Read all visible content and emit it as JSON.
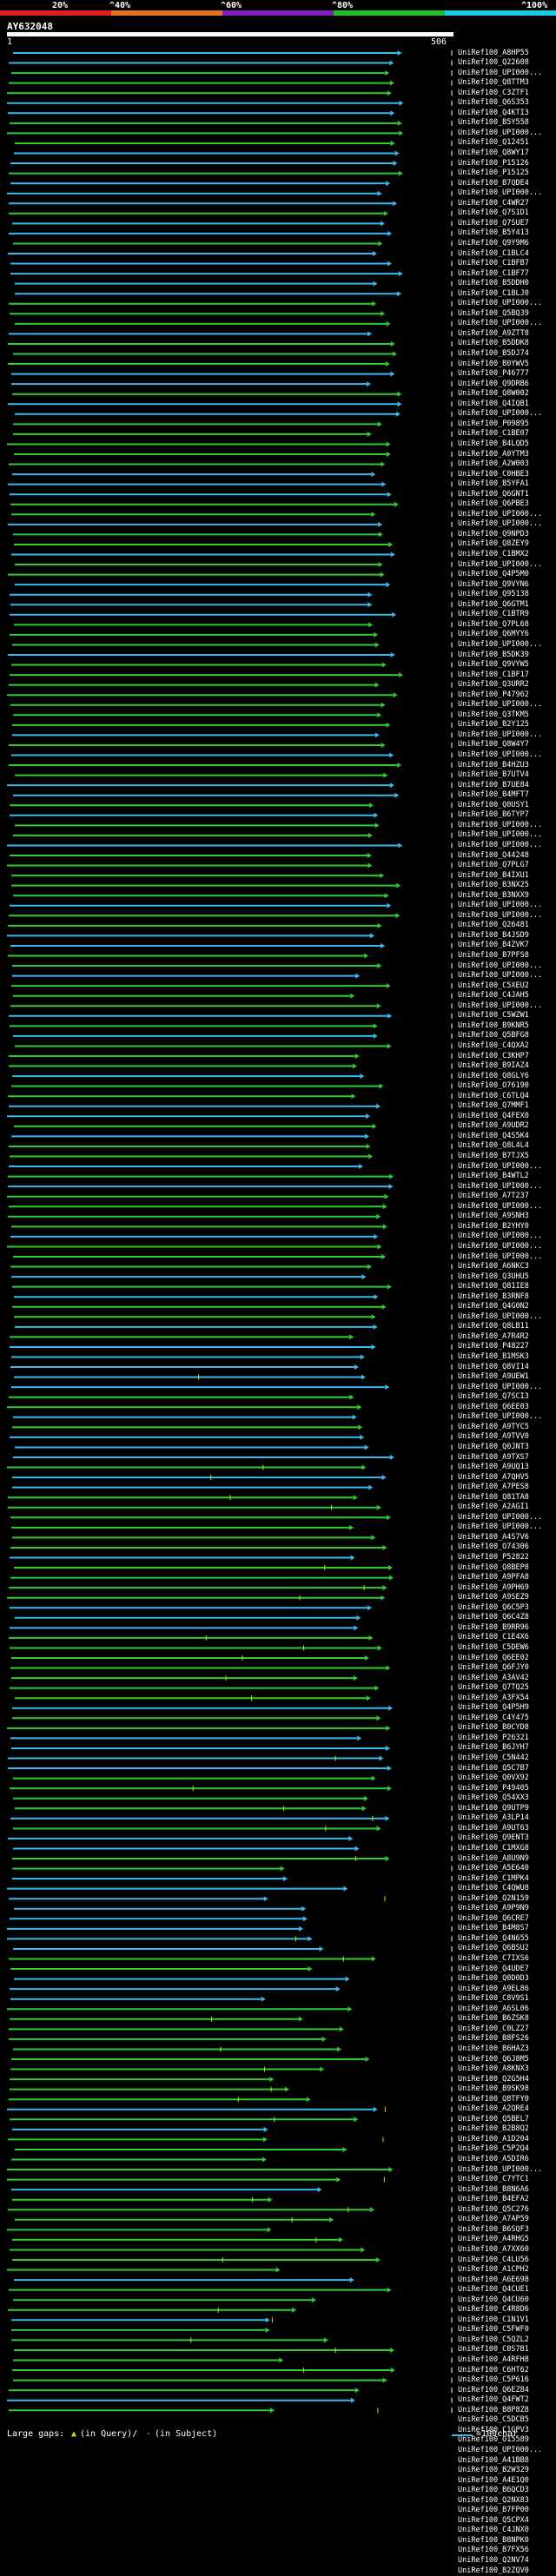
{
  "scale": {
    "ticks": [
      "20%",
      "^40%",
      "^60%",
      "^80%",
      "^100%"
    ],
    "colors": [
      "#e02020",
      "#e87020",
      "#8020c0",
      "#20c020",
      "#20c8e8"
    ]
  },
  "query": {
    "id": "AY632048",
    "start": "1",
    "end": "506"
  },
  "colors": {
    "green": "#2ecc2e",
    "blue": "#3ab8f0",
    "query": "#ffffff",
    "gap": "#d8d800"
  },
  "legend": {
    "prefix": "Large gaps:",
    "marker1": "▲",
    "text1": "(in Query)/",
    "marker2": "-",
    "text2": "(in Subject)",
    "unit": "=100char"
  },
  "hits": [
    "UniRef100_A8HP55",
    "UniRef100_Q22608",
    "UniRef100_UPI000...",
    "UniRef100_Q8TTM3",
    "UniRef100_C3ZTF1",
    "UniRef100_Q6S353",
    "UniRef100_Q4KTI3",
    "UniRef100_B5Y558",
    "UniRef100_UPI000...",
    "UniRef100_Q12451",
    "UniRef100_Q8WY17",
    "UniRef100_P15126",
    "UniRef100_P15125",
    "UniRef100_B7QDE4",
    "UniRef100_UPI000...",
    "UniRef100_C4WR27",
    "UniRef100_Q7S1D1",
    "UniRef100_Q7SUE7",
    "UniRef100_B5Y413",
    "UniRef100_Q9Y9M6",
    "UniRef100_C1BLC4",
    "UniRef100_C1BFB7",
    "UniRef100_C1BF77",
    "UniRef100_B5DDH0",
    "UniRef100_C1BLJ0",
    "UniRef100_UPI000...",
    "UniRef100_Q5BQ39",
    "UniRef100_UPI000...",
    "UniRef100_A9ZTT8",
    "UniRef100_B5DDK8",
    "UniRef100_B5DJ74",
    "UniRef100_B0YWV5",
    "UniRef100_P46777",
    "UniRef100_Q9DRB6",
    "UniRef100_Q8W002",
    "UniRef100_Q4IQB1",
    "UniRef100_UPI000...",
    "UniRef100_P09895",
    "UniRef100_C1BE07",
    "UniRef100_B4LQD5",
    "UniRef100_A0YTM3",
    "UniRef100_A2W003",
    "UniRef100_C0HBE3",
    "UniRef100_B5YFA1",
    "UniRef100_Q6GNT1",
    "UniRef100_Q6PBE3",
    "UniRef100_UPI000...",
    "UniRef100_UPI000...",
    "UniRef100_Q9NPD3",
    "UniRef100_Q8ZEY9",
    "UniRef100_C1BMX2",
    "UniRef100_UPI000...",
    "UniRef100_Q4P5M0",
    "UniRef100_Q9VYN6",
    "UniRef100_Q95138",
    "UniRef100_Q6GTM1",
    "UniRef100_C1BTR9",
    "UniRef100_Q7PL68",
    "UniRef100_Q6MYY6",
    "UniRef100_UPI000...",
    "UniRef100_B5DK39",
    "UniRef100_Q9VYW5",
    "UniRef100_C1BF17",
    "UniRef100_Q3URR2",
    "UniRef100_P47962",
    "UniRef100_UPI000...",
    "UniRef100_Q3TKM5",
    "UniRef100_B2Y125",
    "UniRef100_UPI000...",
    "UniRef100_Q8W4Y7",
    "UniRef100_UPI000...",
    "UniRef100_B4HZU3",
    "UniRef100_B7UTV4",
    "UniRef100_B7UE84",
    "UniRef100_B4MFT7",
    "UniRef100_Q0USY1",
    "UniRef100_B6TYP7",
    "UniRef100_UPI000...",
    "UniRef100_UPI000...",
    "UniRef100_UPI000...",
    "UniRef100_Q44248",
    "UniRef100_Q7PLG7",
    "UniRef100_B4IXU1",
    "UniRef100_B3NX25",
    "UniRef100_B3NXX9",
    "UniRef100_UPI000...",
    "UniRef100_UPI000...",
    "UniRef100_Q26481",
    "UniRef100_B4JSD9",
    "UniRef100_B4ZVK7",
    "UniRef100_B7PFS8",
    "UniRef100_UPI000...",
    "UniRef100_UPI000...",
    "UniRef100_C5XEU2",
    "UniRef100_C4JAH5",
    "UniRef100_UPI000...",
    "UniRef100_C5WZW1",
    "UniRef100_B9KNR5",
    "UniRef100_Q5BFG8",
    "UniRef100_C4QXA2",
    "UniRef100_C3KHP7",
    "UniRef100_B9IAZ4",
    "UniRef100_Q8GLY6",
    "UniRef100_O76190",
    "UniRef100_C6TLQ4",
    "UniRef100_Q7MMF1",
    "UniRef100_Q4FEX0",
    "UniRef100_A9UDR2",
    "UniRef100_Q4S5K4",
    "UniRef100_Q8L4L4",
    "UniRef100_B7TJX5",
    "UniRef100_UPI000...",
    "UniRef100_B4WTL2",
    "UniRef100_UPI000...",
    "UniRef100_A7T237",
    "UniRef100_UPI000...",
    "UniRef100_A9SNH3",
    "UniRef100_B2YHY0",
    "UniRef100_UPI000...",
    "UniRef100_UPI000...",
    "UniRef100_UPI000...",
    "UniRef100_A6NKC3",
    "UniRef100_Q3UHU5",
    "UniRef100_Q81IE8",
    "UniRef100_B3RNF8",
    "UniRef100_Q4G0N2",
    "UniRef100_UPI000...",
    "UniRef100_Q8LB11",
    "UniRef100_A7R4R2",
    "UniRef100_P48227",
    "UniRef100_B1MSK3",
    "UniRef100_Q8VI14",
    "UniRef100_A9UEW1",
    "UniRef100_UPI000...",
    "UniRef100_Q7SCI3",
    "UniRef100_Q6EE03",
    "UniRef100_UPI000...",
    "UniRef100_A9TYC5",
    "UniRef100_A9TVV0",
    "UniRef100_Q0JNT3",
    "UniRef100_A9TXS7",
    "UniRef100_A9UQ13",
    "UniRef100_A7QHV5",
    "UniRef100_A7PES8",
    "UniRef100_Q81TA8",
    "UniRef100_A2AGI1",
    "UniRef100_UPI000...",
    "UniRef100_UPI000...",
    "UniRef100_A4S7V6",
    "UniRef100_O74306",
    "UniRef100_P52822",
    "UniRef100_Q8BEP8",
    "UniRef100_A9PFA8",
    "UniRef100_A9PH69",
    "UniRef100_A9SEZ9",
    "UniRef100_Q6C5P3",
    "UniRef100_Q6C4Z8",
    "UniRef100_B9RR96",
    "UniRef100_C1E4X6",
    "UniRef100_C5DEW6",
    "UniRef100_Q6EE02",
    "UniRef100_Q6FJY0",
    "UniRef100_A3AV42",
    "UniRef100_Q7TQ25",
    "UniRef100_A3FX54",
    "UniRef100_Q4P5H9",
    "UniRef100_C4Y475",
    "UniRef100_B0CYD8",
    "UniRef100_P26321",
    "UniRef100_B6JYH7",
    "UniRef100_C5N442",
    "UniRef100_Q5C7B7",
    "UniRef100_Q0VX92",
    "UniRef100_P49405",
    "UniRef100_Q54XX3",
    "UniRef100_Q9UTP9",
    "UniRef100_A3LP14",
    "UniRef100_A9UT63",
    "UniRef100_Q9ENT3",
    "UniRef100_C1MXG8",
    "UniRef100_A8U9N9",
    "UniRef100_A5E640",
    "UniRef100_C1MPK4",
    "UniRef100_C4QWU8",
    "UniRef100_Q2N159",
    "UniRef100_A9P9N9",
    "UniRef100_Q6CRE7",
    "UniRef100_B4M8S7",
    "UniRef100_Q4N655",
    "UniRef100_Q6BSU2",
    "UniRef100_C7IXS6",
    "UniRef100_Q4UDE7",
    "UniRef100_Q0D0D3",
    "UniRef100_A9EL86",
    "UniRef100_C8V9S1",
    "UniRef100_A6SL06",
    "UniRef100_B6ZSK8",
    "UniRef100_C0LZ27",
    "UniRef100_B8FS26",
    "UniRef100_B6HAZ3",
    "UniRef100_Q6J8M5",
    "UniRef100_A8KNX3",
    "UniRef100_Q2G5H4",
    "UniRef100_B9SK98",
    "UniRef100_Q8TFY0",
    "UniRef100_A2QRE4",
    "UniRef100_Q5BEL7",
    "UniRef100_B2B8Q2",
    "UniRef100_A1D204",
    "UniRef100_C5P2Q4",
    "UniRef100_A5DIR6",
    "UniRef100_UPI000...",
    "UniRef100_C7YTC1",
    "UniRef100_B8N6A6",
    "UniRef100_B4EFA2",
    "UniRef100_Q5C276",
    "UniRef100_A7AP59",
    "UniRef100_B6SQF3",
    "UniRef100_A4RHG5",
    "UniRef100_A7XX60",
    "UniRef100_C4LU56",
    "UniRef100_A1CPH2",
    "UniRef100_A6E698",
    "UniRef100_Q4CUE1",
    "UniRef100_Q4CU60",
    "UniRef100_C4R8D6",
    "UniRef100_C1N1V1",
    "UniRef100_C5FWF0",
    "UniRef100_C5QZL2",
    "UniRef100_C0S7B1",
    "UniRef100_A4RFH8",
    "UniRef100_C6HT62",
    "UniRef100_C5P616",
    "UniRef100_Q6EZ84",
    "UniRef100_Q4FWT2",
    "UniRef100_B8P8Z8",
    "UniRef100_C5DCB5",
    "UniRef100_C1GPV3",
    "UniRef100_O15589",
    "UniRef100_UPI000...",
    "UniRef100_A41BB8",
    "UniRef100_B2W329",
    "UniRef100_A4E1Q0",
    "UniRef100_B6QCD3",
    "UniRef100_Q2NX83",
    "UniRef100_B7FP00",
    "UniRef100_Q5CPX4",
    "UniRef100_C4JNX0",
    "UniRef100_B8NPK0",
    "UniRef100_B7FX56",
    "UniRef100_Q2NV74",
    "UniRef100_B2ZQV0"
  ]
}
